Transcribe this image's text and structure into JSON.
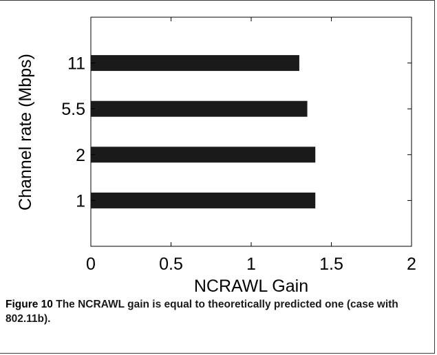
{
  "chart_data": {
    "type": "bar",
    "orientation": "horizontal",
    "categories": [
      "1",
      "2",
      "5.5",
      "11"
    ],
    "values": [
      1.4,
      1.4,
      1.35,
      1.3
    ],
    "xlabel": "NCRAWL Gain",
    "ylabel": "Channel rate (Mbps)",
    "xlim": [
      0,
      2
    ],
    "xticks": [
      "0",
      "0.5",
      "1",
      "1.5",
      "2"
    ],
    "bar_color": "#1a1a1a",
    "grid": false
  },
  "caption": {
    "label": "Figure 10",
    "text": "The NCRAWL gain is equal to theoretically predicted one (case with 802.11b)."
  }
}
